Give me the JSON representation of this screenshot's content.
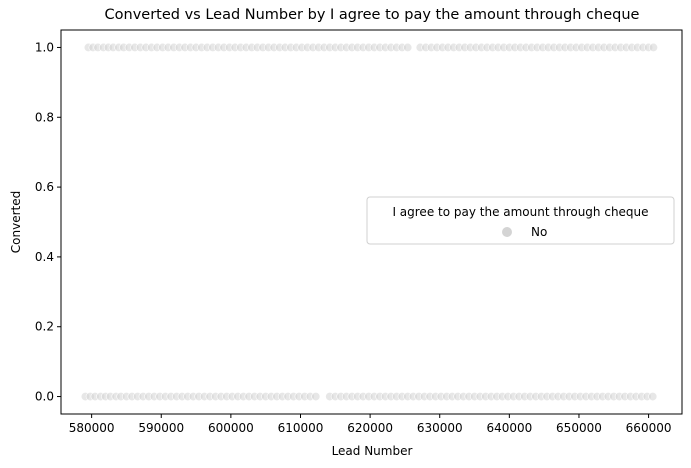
{
  "chart_data": {
    "type": "scatter",
    "title": "Converted vs Lead Number by I agree to pay the amount through cheque",
    "xlabel": "Lead Number",
    "ylabel": "Converted",
    "xlim": [
      575600,
      664800
    ],
    "ylim": [
      -0.05,
      1.05
    ],
    "xticks": [
      580000,
      590000,
      600000,
      610000,
      620000,
      630000,
      640000,
      650000,
      660000
    ],
    "yticks": [
      0.0,
      0.2,
      0.4,
      0.6,
      0.8,
      1.0
    ],
    "xtick_labels": [
      "580000",
      "590000",
      "600000",
      "610000",
      "620000",
      "630000",
      "640000",
      "650000",
      "660000"
    ],
    "ytick_labels": [
      "0.0",
      "0.2",
      "0.4",
      "0.6",
      "0.8",
      "1.0"
    ],
    "grid": false,
    "legend": {
      "title": "I agree to pay the amount through cheque",
      "placement": "center-right",
      "entries": [
        {
          "label": "No",
          "color": "#d4d4d4"
        }
      ]
    },
    "series": [
      {
        "name": "No",
        "color": "#d4d4d4",
        "points": [
          {
            "x": 579530,
            "y": 1
          },
          {
            "x": 580200,
            "y": 1
          },
          {
            "x": 580900,
            "y": 1
          },
          {
            "x": 581700,
            "y": 1
          },
          {
            "x": 582400,
            "y": 1
          },
          {
            "x": 583100,
            "y": 1
          },
          {
            "x": 583900,
            "y": 1
          },
          {
            "x": 584600,
            "y": 1
          },
          {
            "x": 585400,
            "y": 1
          },
          {
            "x": 586200,
            "y": 1
          },
          {
            "x": 587000,
            "y": 1
          },
          {
            "x": 587800,
            "y": 1
          },
          {
            "x": 588600,
            "y": 1
          },
          {
            "x": 589400,
            "y": 1
          },
          {
            "x": 590200,
            "y": 1
          },
          {
            "x": 591000,
            "y": 1
          },
          {
            "x": 591800,
            "y": 1
          },
          {
            "x": 592600,
            "y": 1
          },
          {
            "x": 593400,
            "y": 1
          },
          {
            "x": 594200,
            "y": 1
          },
          {
            "x": 595000,
            "y": 1
          },
          {
            "x": 595800,
            "y": 1
          },
          {
            "x": 596600,
            "y": 1
          },
          {
            "x": 597400,
            "y": 1
          },
          {
            "x": 598200,
            "y": 1
          },
          {
            "x": 599000,
            "y": 1
          },
          {
            "x": 599800,
            "y": 1
          },
          {
            "x": 600600,
            "y": 1
          },
          {
            "x": 601400,
            "y": 1
          },
          {
            "x": 602200,
            "y": 1
          },
          {
            "x": 603000,
            "y": 1
          },
          {
            "x": 603800,
            "y": 1
          },
          {
            "x": 604600,
            "y": 1
          },
          {
            "x": 605400,
            "y": 1
          },
          {
            "x": 606200,
            "y": 1
          },
          {
            "x": 607000,
            "y": 1
          },
          {
            "x": 607800,
            "y": 1
          },
          {
            "x": 608600,
            "y": 1
          },
          {
            "x": 609400,
            "y": 1
          },
          {
            "x": 610200,
            "y": 1
          },
          {
            "x": 611000,
            "y": 1
          },
          {
            "x": 611800,
            "y": 1
          },
          {
            "x": 612600,
            "y": 1
          },
          {
            "x": 613400,
            "y": 1
          },
          {
            "x": 614200,
            "y": 1
          },
          {
            "x": 615000,
            "y": 1
          },
          {
            "x": 615800,
            "y": 1
          },
          {
            "x": 616600,
            "y": 1
          },
          {
            "x": 617400,
            "y": 1
          },
          {
            "x": 618200,
            "y": 1
          },
          {
            "x": 619000,
            "y": 1
          },
          {
            "x": 619800,
            "y": 1
          },
          {
            "x": 620600,
            "y": 1
          },
          {
            "x": 621400,
            "y": 1
          },
          {
            "x": 622200,
            "y": 1
          },
          {
            "x": 623000,
            "y": 1
          },
          {
            "x": 623800,
            "y": 1
          },
          {
            "x": 624600,
            "y": 1
          },
          {
            "x": 625400,
            "y": 1
          },
          {
            "x": 627200,
            "y": 1
          },
          {
            "x": 628000,
            "y": 1
          },
          {
            "x": 628800,
            "y": 1
          },
          {
            "x": 629600,
            "y": 1
          },
          {
            "x": 630400,
            "y": 1
          },
          {
            "x": 631200,
            "y": 1
          },
          {
            "x": 632000,
            "y": 1
          },
          {
            "x": 632800,
            "y": 1
          },
          {
            "x": 633600,
            "y": 1
          },
          {
            "x": 634400,
            "y": 1
          },
          {
            "x": 635200,
            "y": 1
          },
          {
            "x": 636000,
            "y": 1
          },
          {
            "x": 636800,
            "y": 1
          },
          {
            "x": 637600,
            "y": 1
          },
          {
            "x": 638400,
            "y": 1
          },
          {
            "x": 639200,
            "y": 1
          },
          {
            "x": 640000,
            "y": 1
          },
          {
            "x": 640800,
            "y": 1
          },
          {
            "x": 641600,
            "y": 1
          },
          {
            "x": 642400,
            "y": 1
          },
          {
            "x": 643200,
            "y": 1
          },
          {
            "x": 644000,
            "y": 1
          },
          {
            "x": 644800,
            "y": 1
          },
          {
            "x": 645600,
            "y": 1
          },
          {
            "x": 646400,
            "y": 1
          },
          {
            "x": 647200,
            "y": 1
          },
          {
            "x": 648000,
            "y": 1
          },
          {
            "x": 648800,
            "y": 1
          },
          {
            "x": 649600,
            "y": 1
          },
          {
            "x": 650400,
            "y": 1
          },
          {
            "x": 651200,
            "y": 1
          },
          {
            "x": 652000,
            "y": 1
          },
          {
            "x": 652800,
            "y": 1
          },
          {
            "x": 653600,
            "y": 1
          },
          {
            "x": 654400,
            "y": 1
          },
          {
            "x": 655200,
            "y": 1
          },
          {
            "x": 656000,
            "y": 1
          },
          {
            "x": 656800,
            "y": 1
          },
          {
            "x": 657600,
            "y": 1
          },
          {
            "x": 658400,
            "y": 1
          },
          {
            "x": 659200,
            "y": 1
          },
          {
            "x": 660000,
            "y": 1
          },
          {
            "x": 660700,
            "y": 1
          },
          {
            "x": 579100,
            "y": 0
          },
          {
            "x": 579800,
            "y": 0
          },
          {
            "x": 580500,
            "y": 0
          },
          {
            "x": 581300,
            "y": 0
          },
          {
            "x": 582000,
            "y": 0
          },
          {
            "x": 582700,
            "y": 0
          },
          {
            "x": 583500,
            "y": 0
          },
          {
            "x": 584200,
            "y": 0
          },
          {
            "x": 585000,
            "y": 0
          },
          {
            "x": 585800,
            "y": 0
          },
          {
            "x": 586600,
            "y": 0
          },
          {
            "x": 587400,
            "y": 0
          },
          {
            "x": 588200,
            "y": 0
          },
          {
            "x": 589000,
            "y": 0
          },
          {
            "x": 589800,
            "y": 0
          },
          {
            "x": 590600,
            "y": 0
          },
          {
            "x": 591400,
            "y": 0
          },
          {
            "x": 592200,
            "y": 0
          },
          {
            "x": 593000,
            "y": 0
          },
          {
            "x": 593800,
            "y": 0
          },
          {
            "x": 594600,
            "y": 0
          },
          {
            "x": 595400,
            "y": 0
          },
          {
            "x": 596200,
            "y": 0
          },
          {
            "x": 597000,
            "y": 0
          },
          {
            "x": 597800,
            "y": 0
          },
          {
            "x": 598600,
            "y": 0
          },
          {
            "x": 599400,
            "y": 0
          },
          {
            "x": 600200,
            "y": 0
          },
          {
            "x": 601000,
            "y": 0
          },
          {
            "x": 601800,
            "y": 0
          },
          {
            "x": 602600,
            "y": 0
          },
          {
            "x": 603400,
            "y": 0
          },
          {
            "x": 604200,
            "y": 0
          },
          {
            "x": 605000,
            "y": 0
          },
          {
            "x": 605800,
            "y": 0
          },
          {
            "x": 606600,
            "y": 0
          },
          {
            "x": 607400,
            "y": 0
          },
          {
            "x": 608200,
            "y": 0
          },
          {
            "x": 609000,
            "y": 0
          },
          {
            "x": 609800,
            "y": 0
          },
          {
            "x": 610600,
            "y": 0
          },
          {
            "x": 611400,
            "y": 0
          },
          {
            "x": 612200,
            "y": 0
          },
          {
            "x": 614200,
            "y": 0
          },
          {
            "x": 615000,
            "y": 0
          },
          {
            "x": 615800,
            "y": 0
          },
          {
            "x": 616600,
            "y": 0
          },
          {
            "x": 617400,
            "y": 0
          },
          {
            "x": 618200,
            "y": 0
          },
          {
            "x": 619000,
            "y": 0
          },
          {
            "x": 619800,
            "y": 0
          },
          {
            "x": 620600,
            "y": 0
          },
          {
            "x": 621400,
            "y": 0
          },
          {
            "x": 622200,
            "y": 0
          },
          {
            "x": 623000,
            "y": 0
          },
          {
            "x": 623800,
            "y": 0
          },
          {
            "x": 624600,
            "y": 0
          },
          {
            "x": 625400,
            "y": 0
          },
          {
            "x": 626200,
            "y": 0
          },
          {
            "x": 627000,
            "y": 0
          },
          {
            "x": 627800,
            "y": 0
          },
          {
            "x": 628600,
            "y": 0
          },
          {
            "x": 629400,
            "y": 0
          },
          {
            "x": 630200,
            "y": 0
          },
          {
            "x": 631000,
            "y": 0
          },
          {
            "x": 631800,
            "y": 0
          },
          {
            "x": 632600,
            "y": 0
          },
          {
            "x": 633400,
            "y": 0
          },
          {
            "x": 634200,
            "y": 0
          },
          {
            "x": 635000,
            "y": 0
          },
          {
            "x": 635800,
            "y": 0
          },
          {
            "x": 636600,
            "y": 0
          },
          {
            "x": 637400,
            "y": 0
          },
          {
            "x": 638200,
            "y": 0
          },
          {
            "x": 639000,
            "y": 0
          },
          {
            "x": 639800,
            "y": 0
          },
          {
            "x": 640600,
            "y": 0
          },
          {
            "x": 641400,
            "y": 0
          },
          {
            "x": 642200,
            "y": 0
          },
          {
            "x": 643000,
            "y": 0
          },
          {
            "x": 643800,
            "y": 0
          },
          {
            "x": 644600,
            "y": 0
          },
          {
            "x": 645400,
            "y": 0
          },
          {
            "x": 646200,
            "y": 0
          },
          {
            "x": 647000,
            "y": 0
          },
          {
            "x": 647800,
            "y": 0
          },
          {
            "x": 648600,
            "y": 0
          },
          {
            "x": 649400,
            "y": 0
          },
          {
            "x": 650200,
            "y": 0
          },
          {
            "x": 651000,
            "y": 0
          },
          {
            "x": 651800,
            "y": 0
          },
          {
            "x": 652600,
            "y": 0
          },
          {
            "x": 653400,
            "y": 0
          },
          {
            "x": 654200,
            "y": 0
          },
          {
            "x": 655000,
            "y": 0
          },
          {
            "x": 655800,
            "y": 0
          },
          {
            "x": 656600,
            "y": 0
          },
          {
            "x": 657400,
            "y": 0
          },
          {
            "x": 658200,
            "y": 0
          },
          {
            "x": 659000,
            "y": 0
          },
          {
            "x": 659800,
            "y": 0
          },
          {
            "x": 660600,
            "y": 0
          }
        ]
      }
    ]
  }
}
